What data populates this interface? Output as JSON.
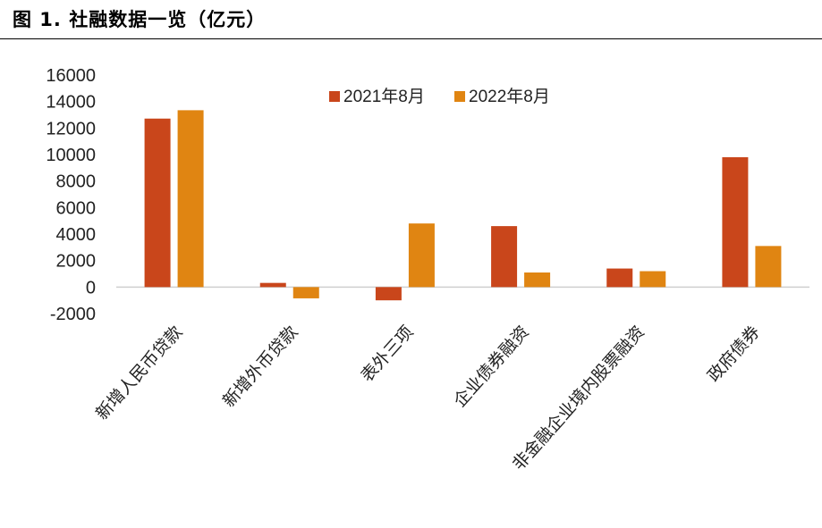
{
  "title": "图 1. 社融数据一览（亿元）",
  "colors": {
    "series_2021": "#c9461b",
    "series_2022": "#e08512",
    "zero_line": "#cfcfcf"
  },
  "chart_data": {
    "type": "bar",
    "categories": [
      "新增人民币贷款",
      "新增外币贷款",
      "表外三项",
      "企业债券融资",
      "非金融企业境内股票融资",
      "政府债券"
    ],
    "series": [
      {
        "name": "2021年8月",
        "values": [
          12714,
          315,
          -1000,
          4600,
          1400,
          9800
        ]
      },
      {
        "name": "2022年8月",
        "values": [
          13345,
          -850,
          4800,
          1100,
          1200,
          3100
        ]
      }
    ],
    "ylim": [
      -2000,
      16000
    ],
    "yticks": [
      "16000",
      "14000",
      "12000",
      "10000",
      "8000",
      "6000",
      "4000",
      "2000",
      "0",
      "-2000"
    ],
    "legend": "top-center",
    "grid": false
  }
}
